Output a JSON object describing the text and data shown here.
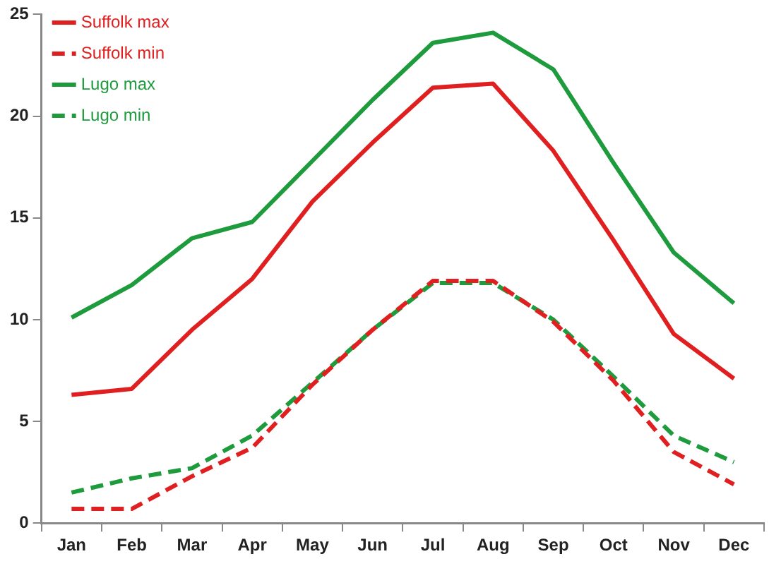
{
  "chart_data": {
    "type": "line",
    "categories": [
      "Jan",
      "Feb",
      "Mar",
      "Apr",
      "May",
      "Jun",
      "Jul",
      "Aug",
      "Sep",
      "Oct",
      "Nov",
      "Dec"
    ],
    "series": [
      {
        "name": "Suffolk max",
        "color": "#e02020",
        "line_style": "solid",
        "values": [
          6.3,
          6.6,
          9.5,
          12,
          15.8,
          18.7,
          21.4,
          21.6,
          18.3,
          13.9,
          9.3,
          7.1
        ]
      },
      {
        "name": "Suffolk min",
        "color": "#e02020",
        "line_style": "dashed",
        "values": [
          0.7,
          0.7,
          2.3,
          3.7,
          6.8,
          9.5,
          11.9,
          11.9,
          9.9,
          7.0,
          3.5,
          1.9
        ]
      },
      {
        "name": "Lugo max",
        "color": "#1e9b3c",
        "line_style": "solid",
        "values": [
          10.1,
          11.7,
          14,
          14.8,
          17.8,
          20.8,
          23.6,
          24.1,
          22.3,
          17.7,
          13.3,
          10.8
        ]
      },
      {
        "name": "Lugo min",
        "color": "#1e9b3c",
        "line_style": "dashed",
        "values": [
          1.5,
          2.2,
          2.7,
          4.3,
          6.9,
          9.5,
          11.8,
          11.8,
          10,
          7.2,
          4.3,
          3.0
        ]
      }
    ],
    "ylim": [
      0,
      25
    ],
    "yticks": [
      0,
      5,
      10,
      15,
      20,
      25
    ],
    "grid": false,
    "legend": "top left",
    "marker": "none"
  }
}
